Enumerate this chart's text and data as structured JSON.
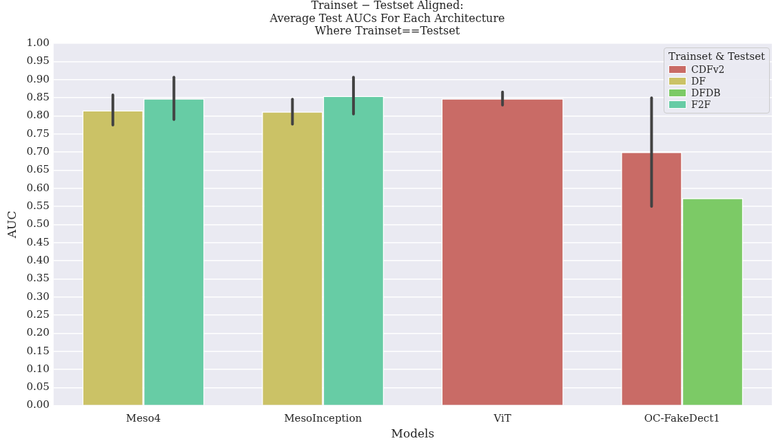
{
  "chart_data": {
    "type": "bar",
    "title": "Trainset − Testset Aligned:\nAverage Test AUCs For Each Architecture\nWhere Trainset==Testset",
    "xlabel": "Models",
    "ylabel": "AUC",
    "legend_title": "Trainset & Testset",
    "categories": [
      "Meso4",
      "MesoInception",
      "ViT",
      "OC-FakeDect1"
    ],
    "series": [
      {
        "name": "CDFv2",
        "color": "#c96b66",
        "values": [
          null,
          null,
          0.848,
          0.7
        ],
        "errors": [
          null,
          null,
          [
            0.83,
            0.866
          ],
          [
            0.55,
            0.85
          ]
        ]
      },
      {
        "name": "DF",
        "color": "#cbc266",
        "values": [
          0.815,
          0.812,
          null,
          null
        ],
        "errors": [
          [
            0.775,
            0.858
          ],
          [
            0.777,
            0.846
          ],
          null,
          null
        ]
      },
      {
        "name": "DFDB",
        "color": "#7cca66",
        "values": [
          null,
          null,
          null,
          0.573
        ],
        "errors": [
          null,
          null,
          null,
          null
        ]
      },
      {
        "name": "F2F",
        "color": "#67cca5",
        "values": [
          0.848,
          0.855,
          null,
          null
        ],
        "errors": [
          [
            0.79,
            0.907
          ],
          [
            0.805,
            0.907
          ],
          null,
          null
        ]
      }
    ],
    "ylim": [
      0,
      1
    ],
    "yticks": [
      {
        "value": 0,
        "label": "0.00"
      },
      {
        "value": 0.05,
        "label": "0.05"
      },
      {
        "value": 0.1,
        "label": "0.10"
      },
      {
        "value": 0.15,
        "label": "0.15"
      },
      {
        "value": 0.2,
        "label": "0.20"
      },
      {
        "value": 0.25,
        "label": "0.25"
      },
      {
        "value": 0.3,
        "label": "0.30"
      },
      {
        "value": 0.35,
        "label": "0.35"
      },
      {
        "value": 0.4,
        "label": "0.40"
      },
      {
        "value": 0.45,
        "label": "0.45"
      },
      {
        "value": 0.5,
        "label": "0.50"
      },
      {
        "value": 0.55,
        "label": "0.55"
      },
      {
        "value": 0.6,
        "label": "0.60"
      },
      {
        "value": 0.65,
        "label": "0.65"
      },
      {
        "value": 0.7,
        "label": "0.70"
      },
      {
        "value": 0.75,
        "label": "0.75"
      },
      {
        "value": 0.8,
        "label": "0.80"
      },
      {
        "value": 0.85,
        "label": "0.85"
      },
      {
        "value": 0.9,
        "label": "0.90"
      },
      {
        "value": 0.95,
        "label": "0.95"
      },
      {
        "value": 1,
        "label": "1.00"
      }
    ],
    "grid": "y",
    "legend": "top right"
  }
}
